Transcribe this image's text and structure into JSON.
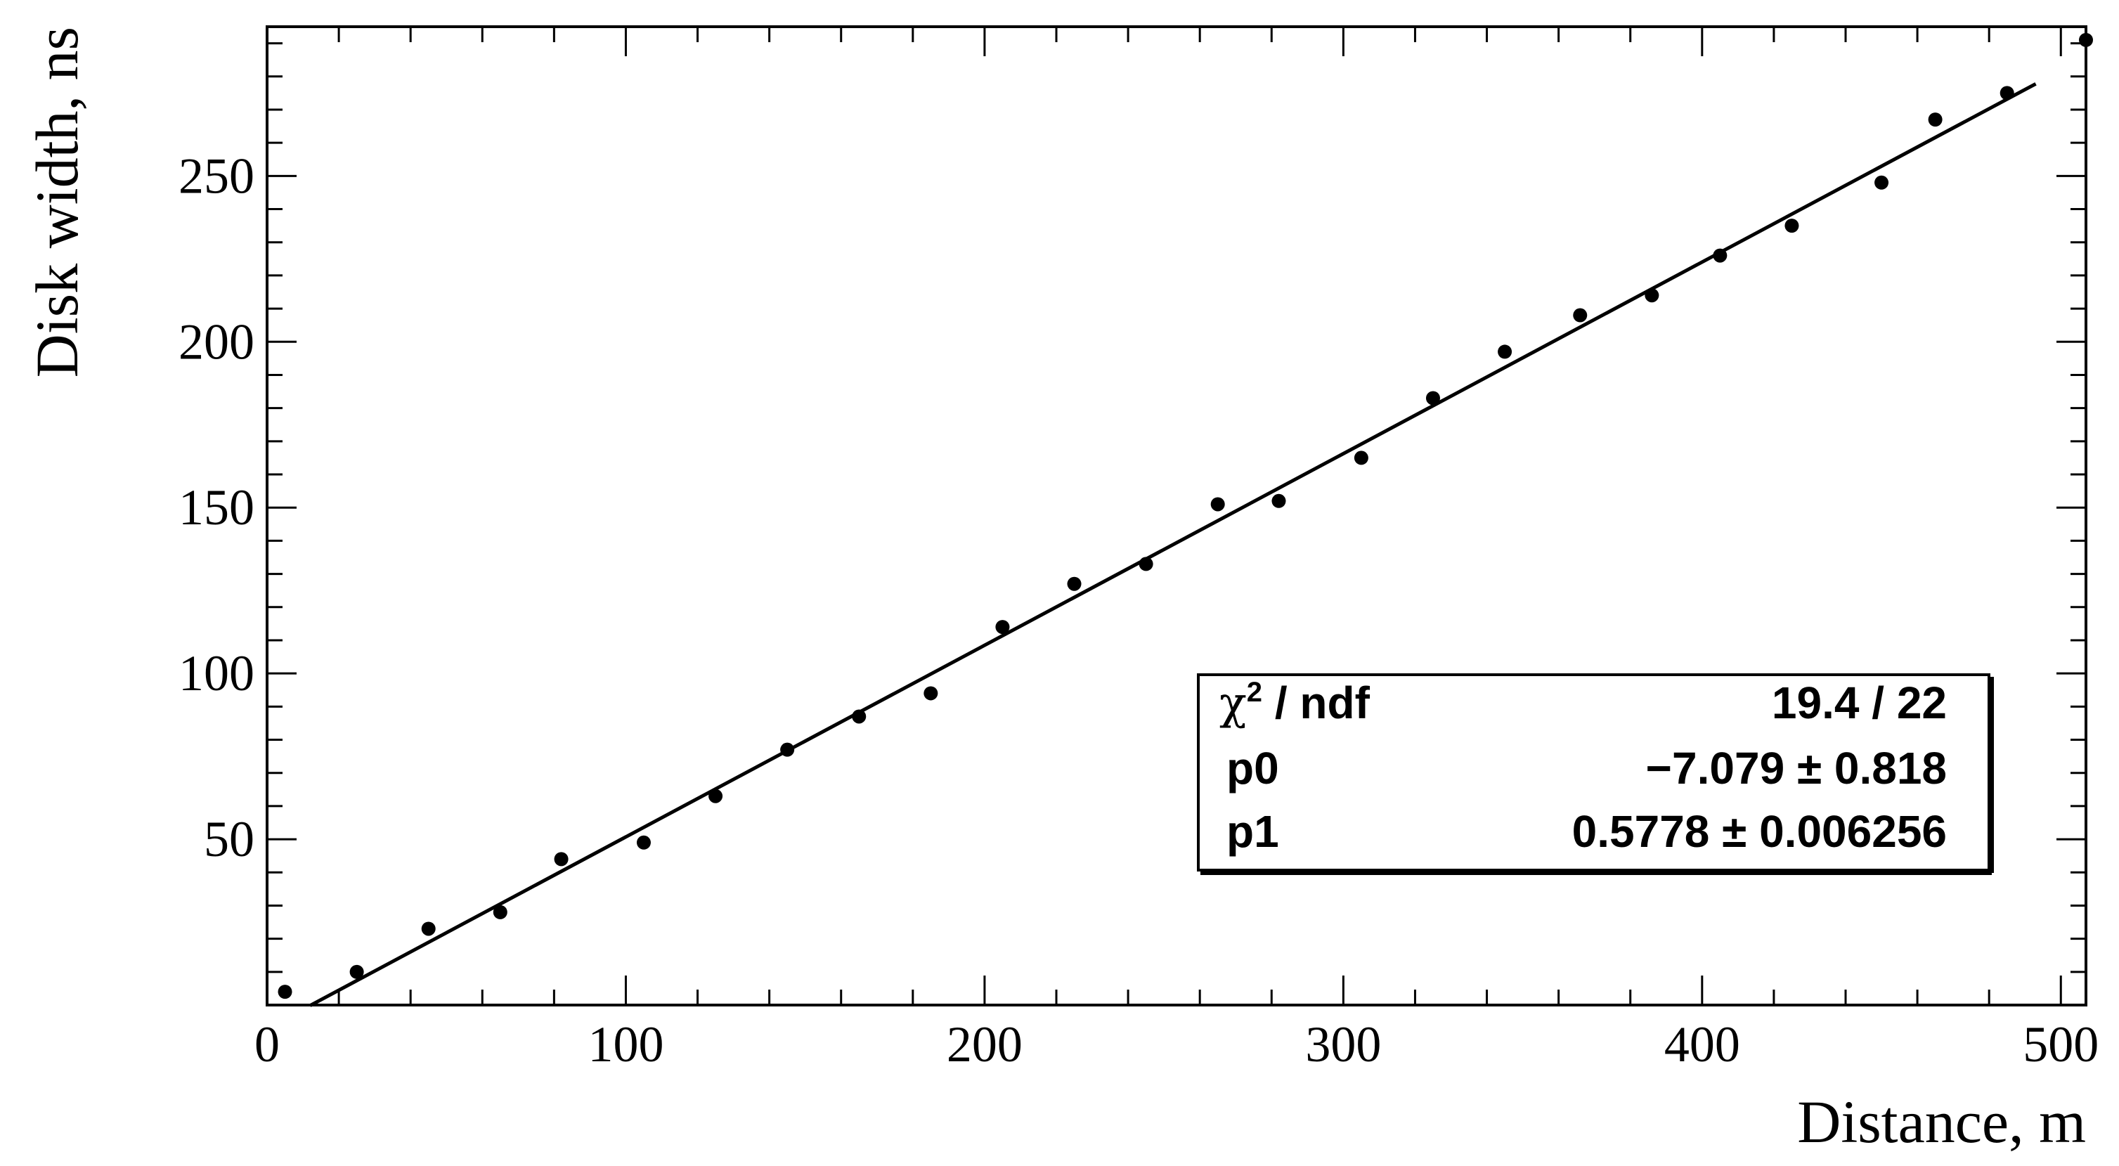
{
  "chart_data": {
    "type": "scatter",
    "xlabel": "Distance, m",
    "ylabel": "Disk width, ns",
    "xlim": [
      0,
      507
    ],
    "ylim": [
      0,
      295
    ],
    "x_ticks": [
      0,
      100,
      200,
      300,
      400,
      500
    ],
    "y_ticks": [
      50,
      100,
      150,
      200,
      250
    ],
    "series": [
      {
        "x": [
          5,
          25,
          45,
          65,
          82,
          105,
          125,
          145,
          165,
          185,
          205,
          225,
          245,
          265,
          282,
          305,
          325,
          345,
          366,
          386,
          405,
          425,
          450,
          465,
          485,
          507
        ],
        "y": [
          4,
          10,
          23,
          28,
          44,
          49,
          63,
          77,
          87,
          94,
          114,
          127,
          133,
          151,
          152,
          165,
          183,
          197,
          208,
          214,
          226,
          235,
          248,
          267,
          275,
          291
        ]
      }
    ],
    "fit": {
      "type": "linear",
      "x_range": [
        12,
        493
      ],
      "p0": -7.079,
      "p1": 0.5778
    },
    "stats_box": {
      "position": "bottom-right",
      "rows": [
        {
          "label_base": "χ",
          "label_sup": "2",
          "label_rest": " / ndf",
          "value": "19.4 / 22"
        },
        {
          "label": "p0",
          "value": "−7.079 ± 0.818"
        },
        {
          "label": "p1",
          "value": "0.5778 ± 0.006256"
        }
      ]
    }
  }
}
